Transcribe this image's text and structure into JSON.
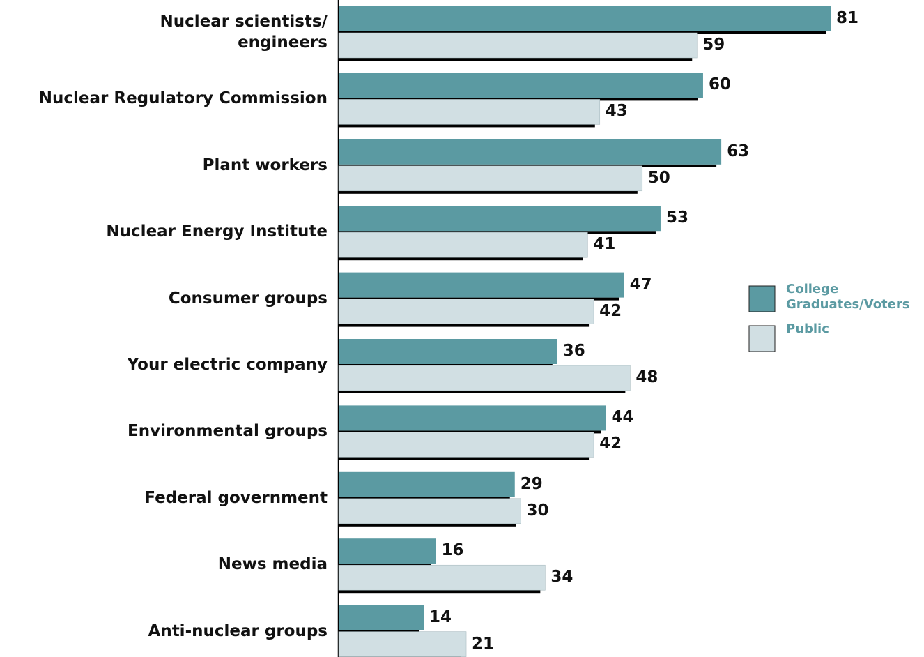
{
  "chart_data": {
    "type": "bar",
    "orientation": "horizontal",
    "categories": [
      "Nuclear scientists/\nengineers",
      "Nuclear Regulatory Commission",
      "Plant workers",
      "Nuclear Energy Institute",
      "Consumer groups",
      "Your electric company",
      "Environmental groups",
      "Federal government",
      "News media",
      "Anti-nuclear groups"
    ],
    "series": [
      {
        "name": "College Graduates/Voters",
        "color": "#5b9aa2",
        "values": [
          81,
          60,
          63,
          53,
          47,
          36,
          44,
          29,
          16,
          14
        ]
      },
      {
        "name": "Public",
        "color": "#d1dfe3",
        "values": [
          59,
          43,
          50,
          41,
          42,
          48,
          42,
          30,
          34,
          21
        ]
      }
    ],
    "xlim": [
      0,
      100
    ],
    "legend": "right",
    "legend_text_color": "#5b9aa2"
  }
}
